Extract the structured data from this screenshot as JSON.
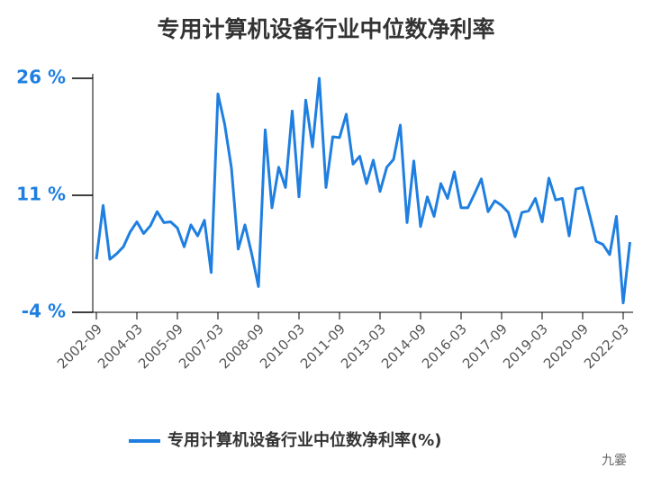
{
  "chart_data": {
    "type": "line",
    "title": "专用计算机设备行业中位数净利率",
    "categories": [
      "2002-09",
      null,
      null,
      null,
      null,
      null,
      "2004-03",
      null,
      null,
      null,
      null,
      null,
      "2005-09",
      null,
      null,
      null,
      null,
      null,
      "2007-03",
      null,
      null,
      null,
      null,
      null,
      "2008-09",
      null,
      null,
      null,
      null,
      null,
      "2010-03",
      null,
      null,
      null,
      null,
      null,
      "2011-09",
      null,
      null,
      null,
      null,
      null,
      "2013-03",
      null,
      null,
      null,
      null,
      null,
      "2014-09",
      null,
      null,
      null,
      null,
      null,
      "2016-03",
      null,
      null,
      null,
      null,
      null,
      "2017-09",
      null,
      null,
      null,
      null,
      null,
      "2019-03",
      null,
      null,
      null,
      null,
      null,
      "2020-09",
      null,
      null,
      null,
      null,
      null,
      "2022-03",
      null
    ],
    "series": [
      {
        "name": "专用计算机设备行业中位数净利率(%)",
        "color": "#1f7fe0",
        "values": [
          2.8,
          9.7,
          2.8,
          3.5,
          4.4,
          6.3,
          7.6,
          6.1,
          7.1,
          8.9,
          7.5,
          7.6,
          6.8,
          4.4,
          7.2,
          5.8,
          7.8,
          1.1,
          24.0,
          20.1,
          14.5,
          4.1,
          7.2,
          3.5,
          -0.7,
          19.4,
          9.4,
          14.6,
          12.0,
          21.8,
          10.8,
          23.2,
          17.2,
          26,
          12.0,
          18.5,
          18.4,
          21.4,
          15.0,
          16.0,
          12.5,
          15.5,
          11.5,
          14.6,
          15.6,
          20.0,
          7.5,
          15.4,
          7.0,
          10.8,
          8.3,
          12.5,
          10.6,
          14.0,
          9.4,
          9.4,
          11.2,
          13.1,
          8.9,
          10.3,
          9.7,
          8.8,
          5.7,
          8.8,
          9.0,
          10.6,
          7.6,
          13.2,
          10.4,
          10.6,
          5.8,
          11.8,
          12.0,
          8.6,
          5.1,
          4.7,
          3.4,
          8.3,
          -2.8,
          5.0
        ]
      }
    ],
    "ylim": [
      -4,
      26
    ],
    "yticks": [
      {
        "value": -4,
        "label": "-4 %"
      },
      {
        "value": 11,
        "label": "11 %"
      },
      {
        "value": 26,
        "label": "26 %"
      }
    ],
    "watermark": "九霎"
  }
}
